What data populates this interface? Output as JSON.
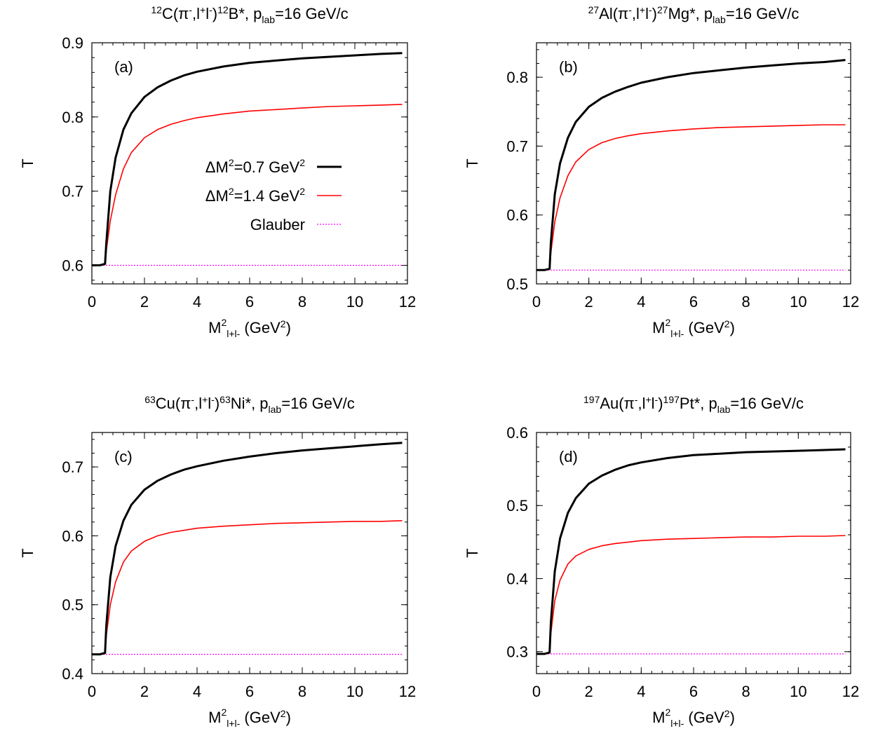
{
  "chart_data": [
    {
      "type": "line",
      "panel_label": "(a)",
      "title": {
        "target_pre": "12",
        "target": "C",
        "probe": "(π",
        "probe_sup": "-",
        "mid": ",l",
        "mid_sup1": "+",
        "mid2": "l",
        "mid_sup2": "-",
        "close": ")",
        "product_pre": "12",
        "product": "B*,  p",
        "lab_sub": "lab",
        "tail": "=16 GeV/c"
      },
      "xlabel": {
        "base": "M",
        "sup": "2",
        "sub": "l+l-",
        "unit": " (GeV",
        "unit_sup": "2",
        "unit_close": ")"
      },
      "ylabel": "T",
      "xlim": [
        0,
        12
      ],
      "ylim": [
        0.575,
        0.9
      ],
      "xticks": [
        "0",
        "2",
        "4",
        "6",
        "8",
        "10",
        "12"
      ],
      "xtick_values": [
        0,
        2,
        4,
        6,
        8,
        10,
        12
      ],
      "yticks": [
        "0.6",
        "0.7",
        "0.8",
        "0.9"
      ],
      "ytick_values": [
        0.6,
        0.7,
        0.8,
        0.9
      ],
      "legend": {
        "placement": "center",
        "entries": [
          {
            "pre": "ΔM",
            "sup": "2",
            "post": "=0.7 GeV",
            "sup2": "2",
            "series": 0
          },
          {
            "pre": "ΔM",
            "sup": "2",
            "post": "=1.4 GeV",
            "sup2": "2",
            "series": 1
          },
          {
            "pre": "Glauber",
            "sup": "",
            "post": "",
            "sup2": "",
            "series": 2
          }
        ]
      },
      "series": [
        {
          "name": "ΔM²=0.7 GeV²",
          "color": "#000000",
          "width": 3,
          "dash": "",
          "x": [
            0.0,
            0.3,
            0.5,
            0.55,
            0.7,
            0.9,
            1.2,
            1.5,
            2.0,
            2.5,
            3.0,
            3.5,
            4.0,
            5.0,
            6.0,
            7.0,
            8.0,
            9.0,
            10.0,
            11.0,
            11.8
          ],
          "y": [
            0.6,
            0.6,
            0.602,
            0.63,
            0.7,
            0.745,
            0.783,
            0.805,
            0.827,
            0.84,
            0.849,
            0.856,
            0.861,
            0.868,
            0.873,
            0.876,
            0.879,
            0.881,
            0.883,
            0.885,
            0.886
          ]
        },
        {
          "name": "ΔM²=1.4 GeV²",
          "color": "#ff0000",
          "width": 1.6,
          "dash": "",
          "x": [
            0.0,
            0.3,
            0.5,
            0.55,
            0.7,
            0.9,
            1.2,
            1.5,
            2.0,
            2.5,
            3.0,
            3.5,
            4.0,
            5.0,
            6.0,
            7.0,
            8.0,
            9.0,
            10.0,
            11.0,
            11.8
          ],
          "y": [
            0.6,
            0.6,
            0.601,
            0.62,
            0.66,
            0.695,
            0.73,
            0.752,
            0.772,
            0.783,
            0.79,
            0.795,
            0.799,
            0.804,
            0.808,
            0.81,
            0.812,
            0.814,
            0.815,
            0.816,
            0.817
          ]
        },
        {
          "name": "Glauber",
          "color": "#ff00ff",
          "width": 1.2,
          "dash": "2,2",
          "x": [
            0.0,
            11.8
          ],
          "y": [
            0.6,
            0.6
          ]
        }
      ]
    },
    {
      "type": "line",
      "panel_label": "(b)",
      "title": {
        "target_pre": "27",
        "target": "Al",
        "probe": "(π",
        "probe_sup": "-",
        "mid": ",l",
        "mid_sup1": "+",
        "mid2": "l",
        "mid_sup2": "-",
        "close": ")",
        "product_pre": "27",
        "product": "Mg*,  p",
        "lab_sub": "lab",
        "tail": "=16 GeV/c"
      },
      "xlabel": {
        "base": "M",
        "sup": "2",
        "sub": "l+l-",
        "unit": " (GeV",
        "unit_sup": "2",
        "unit_close": ")"
      },
      "ylabel": "T",
      "xlim": [
        0,
        12
      ],
      "ylim": [
        0.5,
        0.85
      ],
      "xticks": [
        "0",
        "2",
        "4",
        "6",
        "8",
        "10",
        "12"
      ],
      "xtick_values": [
        0,
        2,
        4,
        6,
        8,
        10,
        12
      ],
      "yticks": [
        "0.5",
        "0.6",
        "0.7",
        "0.8"
      ],
      "ytick_values": [
        0.5,
        0.6,
        0.7,
        0.8
      ],
      "legend": null,
      "series": [
        {
          "name": "ΔM²=0.7 GeV²",
          "color": "#000000",
          "width": 3,
          "dash": "",
          "x": [
            0.0,
            0.3,
            0.5,
            0.55,
            0.7,
            0.9,
            1.2,
            1.5,
            2.0,
            2.5,
            3.0,
            3.5,
            4.0,
            5.0,
            6.0,
            7.0,
            8.0,
            9.0,
            10.0,
            11.0,
            11.8
          ],
          "y": [
            0.52,
            0.52,
            0.522,
            0.56,
            0.63,
            0.675,
            0.712,
            0.735,
            0.757,
            0.77,
            0.779,
            0.786,
            0.792,
            0.8,
            0.806,
            0.81,
            0.814,
            0.817,
            0.82,
            0.822,
            0.825
          ]
        },
        {
          "name": "ΔM²=1.4 GeV²",
          "color": "#ff0000",
          "width": 1.6,
          "dash": "",
          "x": [
            0.0,
            0.3,
            0.5,
            0.55,
            0.7,
            0.9,
            1.2,
            1.5,
            2.0,
            2.5,
            3.0,
            3.5,
            4.0,
            5.0,
            6.0,
            7.0,
            8.0,
            9.0,
            10.0,
            11.0,
            11.8
          ],
          "y": [
            0.52,
            0.52,
            0.521,
            0.545,
            0.59,
            0.625,
            0.657,
            0.677,
            0.695,
            0.705,
            0.711,
            0.715,
            0.718,
            0.722,
            0.725,
            0.727,
            0.728,
            0.729,
            0.73,
            0.731,
            0.731
          ]
        },
        {
          "name": "Glauber",
          "color": "#ff00ff",
          "width": 1.2,
          "dash": "2,2",
          "x": [
            0.0,
            11.8
          ],
          "y": [
            0.52,
            0.52
          ]
        }
      ]
    },
    {
      "type": "line",
      "panel_label": "(c)",
      "title": {
        "target_pre": "63",
        "target": "Cu",
        "probe": "(π",
        "probe_sup": "-",
        "mid": ",l",
        "mid_sup1": "+",
        "mid2": "l",
        "mid_sup2": "-",
        "close": ")",
        "product_pre": "63",
        "product": "Ni*,  p",
        "lab_sub": "lab",
        "tail": "=16 GeV/c"
      },
      "xlabel": {
        "base": "M",
        "sup": "2",
        "sub": "l+l-",
        "unit": " (GeV",
        "unit_sup": "2",
        "unit_close": ")"
      },
      "ylabel": "T",
      "xlim": [
        0,
        12
      ],
      "ylim": [
        0.4,
        0.75
      ],
      "xticks": [
        "0",
        "2",
        "4",
        "6",
        "8",
        "10",
        "12"
      ],
      "xtick_values": [
        0,
        2,
        4,
        6,
        8,
        10,
        12
      ],
      "yticks": [
        "0.4",
        "0.5",
        "0.6",
        "0.7"
      ],
      "ytick_values": [
        0.4,
        0.5,
        0.6,
        0.7
      ],
      "legend": null,
      "series": [
        {
          "name": "ΔM²=0.7 GeV²",
          "color": "#000000",
          "width": 3,
          "dash": "",
          "x": [
            0.0,
            0.3,
            0.5,
            0.55,
            0.7,
            0.9,
            1.2,
            1.5,
            2.0,
            2.5,
            3.0,
            3.5,
            4.0,
            5.0,
            6.0,
            7.0,
            8.0,
            9.0,
            10.0,
            11.0,
            11.8
          ],
          "y": [
            0.428,
            0.428,
            0.43,
            0.47,
            0.54,
            0.585,
            0.622,
            0.645,
            0.667,
            0.68,
            0.689,
            0.696,
            0.701,
            0.709,
            0.715,
            0.72,
            0.724,
            0.727,
            0.73,
            0.733,
            0.735
          ]
        },
        {
          "name": "ΔM²=1.4 GeV²",
          "color": "#ff0000",
          "width": 1.6,
          "dash": "",
          "x": [
            0.0,
            0.3,
            0.5,
            0.55,
            0.7,
            0.9,
            1.2,
            1.5,
            2.0,
            2.5,
            3.0,
            3.5,
            4.0,
            5.0,
            6.0,
            7.0,
            8.0,
            9.0,
            10.0,
            11.0,
            11.8
          ],
          "y": [
            0.428,
            0.428,
            0.429,
            0.455,
            0.5,
            0.533,
            0.562,
            0.578,
            0.592,
            0.6,
            0.605,
            0.608,
            0.611,
            0.614,
            0.616,
            0.618,
            0.619,
            0.62,
            0.621,
            0.621,
            0.622
          ]
        },
        {
          "name": "Glauber",
          "color": "#ff00ff",
          "width": 1.2,
          "dash": "2,2",
          "x": [
            0.0,
            11.8
          ],
          "y": [
            0.428,
            0.428
          ]
        }
      ]
    },
    {
      "type": "line",
      "panel_label": "(d)",
      "title": {
        "target_pre": "197",
        "target": "Au",
        "probe": "(π",
        "probe_sup": "-",
        "mid": ",l",
        "mid_sup1": "+",
        "mid2": "l",
        "mid_sup2": "-",
        "close": ")",
        "product_pre": "197",
        "product": "Pt*,  p",
        "lab_sub": "lab",
        "tail": "=16 GeV/c"
      },
      "xlabel": {
        "base": "M",
        "sup": "2",
        "sub": "l+l-",
        "unit": " (GeV",
        "unit_sup": "2",
        "unit_close": ")"
      },
      "ylabel": "T",
      "xlim": [
        0,
        12
      ],
      "ylim": [
        0.27,
        0.6
      ],
      "xticks": [
        "0",
        "2",
        "4",
        "6",
        "8",
        "10",
        "12"
      ],
      "xtick_values": [
        0,
        2,
        4,
        6,
        8,
        10,
        12
      ],
      "yticks": [
        "0.3",
        "0.4",
        "0.5",
        "0.6"
      ],
      "ytick_values": [
        0.3,
        0.4,
        0.5,
        0.6
      ],
      "legend": null,
      "series": [
        {
          "name": "ΔM²=0.7 GeV²",
          "color": "#000000",
          "width": 3,
          "dash": "",
          "x": [
            0.0,
            0.3,
            0.5,
            0.55,
            0.7,
            0.9,
            1.2,
            1.5,
            2.0,
            2.5,
            3.0,
            3.5,
            4.0,
            5.0,
            6.0,
            7.0,
            8.0,
            9.0,
            10.0,
            11.0,
            11.8
          ],
          "y": [
            0.297,
            0.297,
            0.299,
            0.34,
            0.41,
            0.455,
            0.49,
            0.51,
            0.53,
            0.541,
            0.549,
            0.555,
            0.559,
            0.565,
            0.569,
            0.571,
            0.573,
            0.574,
            0.575,
            0.576,
            0.577
          ]
        },
        {
          "name": "ΔM²=1.4 GeV²",
          "color": "#ff0000",
          "width": 1.6,
          "dash": "",
          "x": [
            0.0,
            0.3,
            0.5,
            0.55,
            0.7,
            0.9,
            1.2,
            1.5,
            2.0,
            2.5,
            3.0,
            3.5,
            4.0,
            5.0,
            6.0,
            7.0,
            8.0,
            9.0,
            10.0,
            11.0,
            11.8
          ],
          "y": [
            0.297,
            0.297,
            0.298,
            0.325,
            0.37,
            0.398,
            0.42,
            0.431,
            0.44,
            0.445,
            0.448,
            0.45,
            0.452,
            0.454,
            0.455,
            0.456,
            0.457,
            0.457,
            0.458,
            0.458,
            0.459
          ]
        },
        {
          "name": "Glauber",
          "color": "#ff00ff",
          "width": 1.2,
          "dash": "2,2",
          "x": [
            0.0,
            11.8
          ],
          "y": [
            0.297,
            0.297
          ]
        }
      ]
    }
  ]
}
